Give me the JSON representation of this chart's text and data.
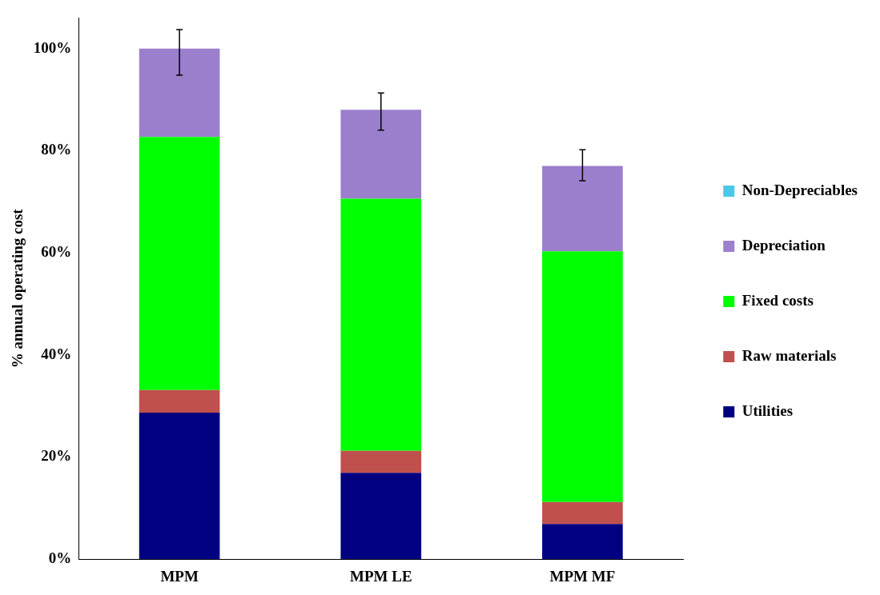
{
  "chart_data": {
    "type": "bar",
    "stacked": true,
    "ylabel": "% annual operating cost",
    "categories": [
      "MPM",
      "MPM LE",
      "MPM MF"
    ],
    "series": [
      {
        "name": "Utilities",
        "color": "#000080",
        "values": [
          28.7,
          16.9,
          6.9
        ]
      },
      {
        "name": "Raw materials",
        "color": "#c0504d",
        "values": [
          4.4,
          4.3,
          4.3
        ]
      },
      {
        "name": "Fixed costs",
        "color": "#00ff00",
        "values": [
          49.6,
          49.4,
          49.1
        ]
      },
      {
        "name": "Depreciation",
        "color": "#9b7fcc",
        "values": [
          17.3,
          17.4,
          16.7
        ],
        "errors": [
          [
            94.8,
            103.7
          ],
          [
            84.0,
            91.3
          ],
          [
            74.1,
            80.2
          ]
        ]
      },
      {
        "name": "Non-Depreciables",
        "color": "#4bc8e8",
        "values": [
          0,
          0,
          0
        ]
      }
    ],
    "ylim": [
      0,
      106
    ],
    "yticks": [
      {
        "value": 0,
        "label": "0%"
      },
      {
        "value": 20,
        "label": "20%"
      },
      {
        "value": 40,
        "label": "40%"
      },
      {
        "value": 60,
        "label": "60%"
      },
      {
        "value": 80,
        "label": "80%"
      },
      {
        "value": 100,
        "label": "100%"
      }
    ],
    "grid": false,
    "legend": "right"
  }
}
